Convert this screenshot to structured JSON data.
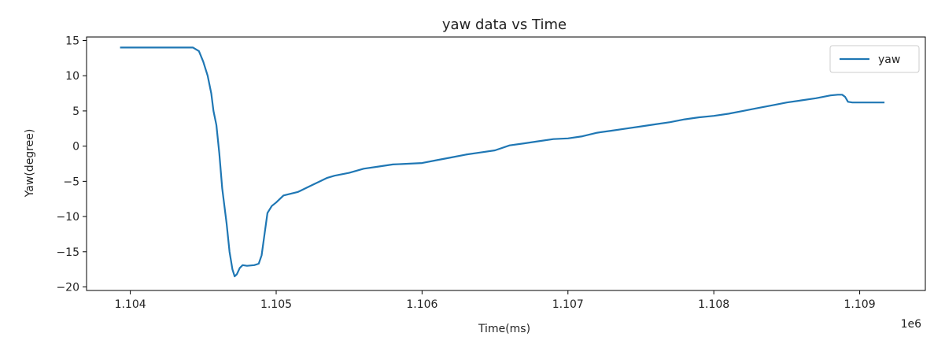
{
  "chart_data": {
    "type": "line",
    "title": "yaw data vs Time",
    "xlabel": "Time(ms)",
    "ylabel": "Yaw(degree)",
    "x_offset_label": "1e6",
    "xlim": [
      1103700,
      1109450
    ],
    "ylim": [
      -20.5,
      15.5
    ],
    "x_ticks": [
      1104000,
      1105000,
      1106000,
      1107000,
      1108000,
      1109000
    ],
    "x_tick_labels": [
      "1.104",
      "1.105",
      "1.106",
      "1.107",
      "1.108",
      "1.109"
    ],
    "y_ticks": [
      15,
      10,
      5,
      0,
      -5,
      -10,
      -15,
      -20
    ],
    "y_tick_labels": [
      "15",
      "10",
      "5",
      "0",
      "−5",
      "−10",
      "−15",
      "−20"
    ],
    "grid": false,
    "legend_position": "top-right",
    "series": [
      {
        "name": "yaw",
        "color": "#1f77b4",
        "points": [
          [
            1103930,
            14.0
          ],
          [
            1104100,
            14.0
          ],
          [
            1104300,
            14.0
          ],
          [
            1104430,
            14.0
          ],
          [
            1104470,
            13.5
          ],
          [
            1104500,
            12.0
          ],
          [
            1104530,
            10.0
          ],
          [
            1104555,
            7.5
          ],
          [
            1104570,
            5.0
          ],
          [
            1104590,
            3.0
          ],
          [
            1104610,
            -1.0
          ],
          [
            1104630,
            -6.0
          ],
          [
            1104660,
            -11.0
          ],
          [
            1104680,
            -15.0
          ],
          [
            1104700,
            -17.5
          ],
          [
            1104715,
            -18.5
          ],
          [
            1104730,
            -18.2
          ],
          [
            1104750,
            -17.3
          ],
          [
            1104770,
            -16.9
          ],
          [
            1104800,
            -17.0
          ],
          [
            1104850,
            -16.9
          ],
          [
            1104880,
            -16.7
          ],
          [
            1104900,
            -15.5
          ],
          [
            1104920,
            -12.5
          ],
          [
            1104940,
            -9.5
          ],
          [
            1104970,
            -8.5
          ],
          [
            1105000,
            -8.0
          ],
          [
            1105050,
            -7.0
          ],
          [
            1105150,
            -6.5
          ],
          [
            1105200,
            -6.0
          ],
          [
            1105250,
            -5.5
          ],
          [
            1105300,
            -5.0
          ],
          [
            1105350,
            -4.5
          ],
          [
            1105400,
            -4.2
          ],
          [
            1105500,
            -3.8
          ],
          [
            1105600,
            -3.2
          ],
          [
            1105700,
            -2.9
          ],
          [
            1105800,
            -2.6
          ],
          [
            1106000,
            -2.4
          ],
          [
            1106100,
            -2.0
          ],
          [
            1106200,
            -1.6
          ],
          [
            1106300,
            -1.2
          ],
          [
            1106400,
            -0.9
          ],
          [
            1106500,
            -0.6
          ],
          [
            1106600,
            0.1
          ],
          [
            1106700,
            0.4
          ],
          [
            1106800,
            0.7
          ],
          [
            1106900,
            1.0
          ],
          [
            1107000,
            1.1
          ],
          [
            1107100,
            1.4
          ],
          [
            1107200,
            1.9
          ],
          [
            1107300,
            2.2
          ],
          [
            1107400,
            2.5
          ],
          [
            1107500,
            2.8
          ],
          [
            1107600,
            3.1
          ],
          [
            1107700,
            3.4
          ],
          [
            1107800,
            3.8
          ],
          [
            1107900,
            4.1
          ],
          [
            1108000,
            4.3
          ],
          [
            1108100,
            4.6
          ],
          [
            1108200,
            5.0
          ],
          [
            1108300,
            5.4
          ],
          [
            1108400,
            5.8
          ],
          [
            1108500,
            6.2
          ],
          [
            1108600,
            6.5
          ],
          [
            1108700,
            6.8
          ],
          [
            1108800,
            7.2
          ],
          [
            1108850,
            7.3
          ],
          [
            1108880,
            7.3
          ],
          [
            1108900,
            7.0
          ],
          [
            1108920,
            6.3
          ],
          [
            1108950,
            6.2
          ],
          [
            1109000,
            6.2
          ],
          [
            1109100,
            6.2
          ],
          [
            1109170,
            6.2
          ]
        ]
      }
    ]
  }
}
